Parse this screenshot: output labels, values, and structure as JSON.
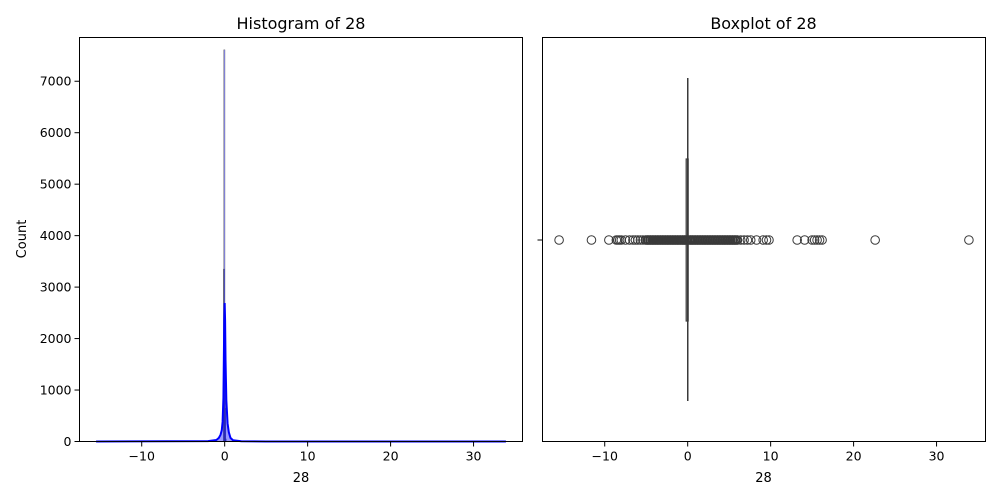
{
  "chart_data": [
    {
      "type": "histogram",
      "title": "Histogram of 28",
      "xlabel": "28",
      "ylabel": "Count",
      "xlim": [
        -17.5,
        35.9
      ],
      "ylim": [
        0,
        7850
      ],
      "xticks": [
        -10,
        0,
        10,
        20,
        30
      ],
      "yticks": [
        0,
        1000,
        2000,
        3000,
        4000,
        5000,
        6000,
        7000
      ],
      "bar_color": "#0000ff",
      "kde_color": "#0000ff",
      "bins": [
        {
          "x": -0.15,
          "count": 7
        },
        {
          "x": -0.1,
          "count": 3350
        },
        {
          "x": -0.05,
          "count": 7610
        },
        {
          "x": 0.0,
          "count": 2400
        },
        {
          "x": 0.05,
          "count": 650
        },
        {
          "x": 0.1,
          "count": 50
        }
      ],
      "kde": {
        "x": [
          -15.5,
          -2,
          -1,
          -0.7,
          -0.5,
          -0.35,
          -0.25,
          -0.15,
          -0.1,
          -0.05,
          0,
          0.05,
          0.1,
          0.2,
          0.35,
          0.5,
          0.7,
          1,
          2,
          5,
          15,
          33.9
        ],
        "y": [
          0,
          8,
          30,
          70,
          130,
          220,
          380,
          850,
          1600,
          2350,
          2690,
          2350,
          1600,
          800,
          350,
          180,
          70,
          25,
          6,
          0,
          0,
          0
        ]
      }
    },
    {
      "type": "boxplot",
      "title": "Boxplot of 28",
      "xlabel": "28",
      "xlim": [
        -17.5,
        35.9
      ],
      "xticks": [
        -10,
        0,
        10,
        20,
        30
      ],
      "box": {
        "q1": -0.06,
        "median": 0.01,
        "q3": 0.06,
        "whisker_low": -0.25,
        "whisker_high": 0.25
      },
      "box_color": "#3a3a3a",
      "outliers": [
        -15.5,
        -11.6,
        -9.5,
        -8.6,
        -8.4,
        -8.2,
        -8.0,
        -7.5,
        -7.0,
        -6.6,
        -6.3,
        -6.0,
        -5.7,
        -5.4,
        -5.1,
        -4.8,
        -4.5,
        -4.2,
        -3.9,
        -3.6,
        -3.3,
        -3.0,
        -2.7,
        -2.4,
        -2.1,
        -1.8,
        -1.5,
        -1.2,
        -0.9,
        -0.6,
        -0.35,
        0.35,
        0.6,
        0.9,
        1.2,
        1.5,
        1.8,
        2.1,
        2.4,
        2.7,
        3.0,
        3.3,
        3.6,
        3.9,
        4.2,
        4.5,
        4.8,
        5.1,
        5.4,
        5.7,
        6.0,
        6.4,
        6.8,
        7.2,
        7.6,
        8.3,
        9.1,
        9.5,
        9.8,
        13.2,
        14.1,
        15.0,
        15.3,
        15.6,
        15.9,
        16.2,
        22.6,
        33.9
      ]
    }
  ]
}
